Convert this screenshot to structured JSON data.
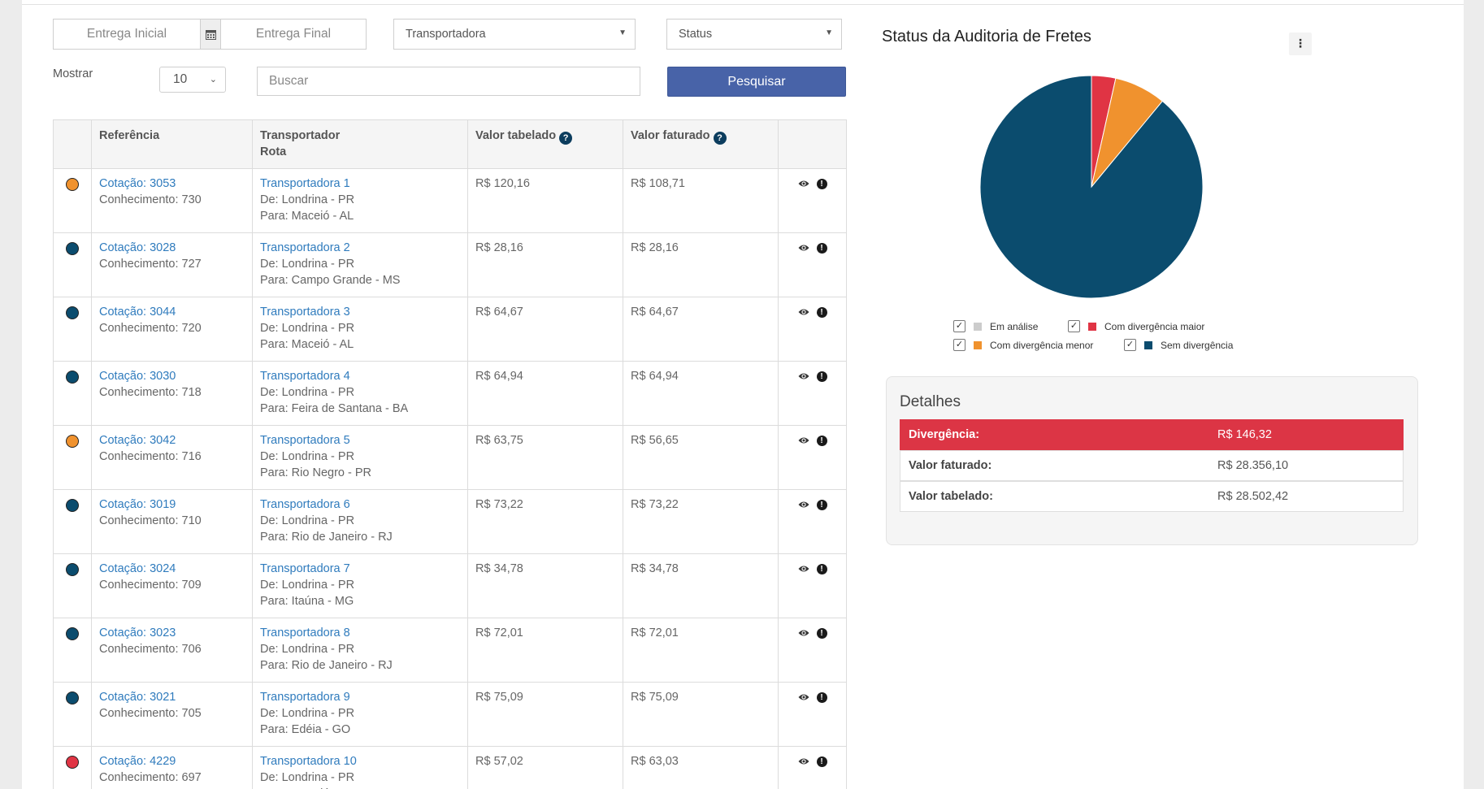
{
  "filters": {
    "entrega_inicial_placeholder": "Entrega Inicial",
    "entrega_final_placeholder": "Entrega Final",
    "transportadora": "Transportadora",
    "status": "Status",
    "mostrar_label": "Mostrar",
    "mostrar_value": "10",
    "buscar_placeholder": "Buscar",
    "pesquisar": "Pesquisar"
  },
  "table": {
    "headers": {
      "referencia": "Referência",
      "transportador": "Transportador",
      "rota": "Rota",
      "valor_tabelado": "Valor tabelado",
      "valor_faturado": "Valor faturado"
    },
    "rows": [
      {
        "status_color": "#f0922e",
        "cotacao": "Cotação: 3053",
        "conhecimento": "Conhecimento: 730",
        "transportadora": "Transportadora 1",
        "de": "De: Londrina - PR",
        "para": "Para: Maceió - AL",
        "tabelado": "R$ 120,16",
        "faturado": "R$ 108,71"
      },
      {
        "status_color": "#0b4c6e",
        "cotacao": "Cotação: 3028",
        "conhecimento": "Conhecimento: 727",
        "transportadora": "Transportadora 2",
        "de": "De: Londrina - PR",
        "para": "Para: Campo Grande - MS",
        "tabelado": "R$ 28,16",
        "faturado": "R$ 28,16"
      },
      {
        "status_color": "#0b4c6e",
        "cotacao": "Cotação: 3044",
        "conhecimento": "Conhecimento: 720",
        "transportadora": "Transportadora 3",
        "de": "De: Londrina - PR",
        "para": "Para: Maceió - AL",
        "tabelado": "R$ 64,67",
        "faturado": "R$ 64,67"
      },
      {
        "status_color": "#0b4c6e",
        "cotacao": "Cotação: 3030",
        "conhecimento": "Conhecimento: 718",
        "transportadora": "Transportadora 4",
        "de": "De: Londrina - PR",
        "para": "Para: Feira de Santana - BA",
        "tabelado": "R$ 64,94",
        "faturado": "R$ 64,94"
      },
      {
        "status_color": "#f0922e",
        "cotacao": "Cotação: 3042",
        "conhecimento": "Conhecimento: 716",
        "transportadora": "Transportadora 5",
        "de": "De: Londrina - PR",
        "para": "Para: Rio Negro - PR",
        "tabelado": "R$ 63,75",
        "faturado": "R$ 56,65"
      },
      {
        "status_color": "#0b4c6e",
        "cotacao": "Cotação: 3019",
        "conhecimento": "Conhecimento: 710",
        "transportadora": "Transportadora 6",
        "de": "De: Londrina - PR",
        "para": "Para: Rio de Janeiro - RJ",
        "tabelado": "R$ 73,22",
        "faturado": "R$ 73,22"
      },
      {
        "status_color": "#0b4c6e",
        "cotacao": "Cotação: 3024",
        "conhecimento": "Conhecimento: 709",
        "transportadora": "Transportadora 7",
        "de": "De: Londrina - PR",
        "para": "Para: Itaúna - MG",
        "tabelado": "R$ 34,78",
        "faturado": "R$ 34,78"
      },
      {
        "status_color": "#0b4c6e",
        "cotacao": "Cotação: 3023",
        "conhecimento": "Conhecimento: 706",
        "transportadora": "Transportadora 8",
        "de": "De: Londrina - PR",
        "para": "Para: Rio de Janeiro - RJ",
        "tabelado": "R$ 72,01",
        "faturado": "R$ 72,01"
      },
      {
        "status_color": "#0b4c6e",
        "cotacao": "Cotação: 3021",
        "conhecimento": "Conhecimento: 705",
        "transportadora": "Transportadora 9",
        "de": "De: Londrina - PR",
        "para": "Para: Edéia - GO",
        "tabelado": "R$ 75,09",
        "faturado": "R$ 75,09"
      },
      {
        "status_color": "#e03444",
        "cotacao": "Cotação: 4229",
        "conhecimento": "Conhecimento: 697",
        "transportadora": "Transportadora 10",
        "de": "De: Londrina - PR",
        "para": "Para: Maceió - AL",
        "tabelado": "R$ 57,02",
        "faturado": "R$ 63,03"
      }
    ]
  },
  "chart": {
    "title": "Status da Auditoria de Fretes",
    "legend": [
      {
        "label": "Em análise",
        "color": "#cccccc"
      },
      {
        "label": "Com divergência maior",
        "color": "#e03444"
      },
      {
        "label": "Com divergência menor",
        "color": "#f0922e"
      },
      {
        "label": "Sem divergência",
        "color": "#0b4c6e"
      }
    ]
  },
  "chart_data": {
    "type": "pie",
    "title": "Status da Auditoria de Fretes",
    "slices": [
      {
        "label": "Em análise",
        "value": 0
      },
      {
        "label": "Com divergência maior",
        "value": 3.5
      },
      {
        "label": "Com divergência menor",
        "value": 7.5
      },
      {
        "label": "Sem divergência",
        "value": 89
      }
    ],
    "colors": [
      "#cccccc",
      "#e03444",
      "#f0922e",
      "#0b4c6e"
    ],
    "legend_position": "bottom"
  },
  "details": {
    "title": "Detalhes",
    "rows": [
      {
        "label": "Divergência:",
        "value": "R$ 146,32"
      },
      {
        "label": "Valor faturado:",
        "value": "R$ 28.356,10"
      },
      {
        "label": "Valor tabelado:",
        "value": "R$ 28.502,42"
      }
    ]
  }
}
